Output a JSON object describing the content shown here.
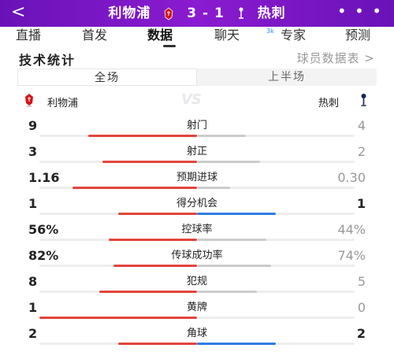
{
  "header": {
    "back": "<",
    "home_team": "利物浦",
    "score": "3 - 1",
    "away_team": "热刺",
    "more": "• • •",
    "colors": {
      "bg": "#7a16c4"
    }
  },
  "tabs": [
    {
      "label": "直播"
    },
    {
      "label": "首发"
    },
    {
      "label": "数据",
      "active": true
    },
    {
      "label": "聊天",
      "badge": "3k"
    },
    {
      "label": "专家"
    },
    {
      "label": "预测"
    }
  ],
  "section": {
    "title": "技术统计",
    "player_link": "球员数据表 >"
  },
  "segment": {
    "full": "全场",
    "half": "上半场"
  },
  "teams": {
    "home": "利物浦",
    "away": "热刺",
    "vs": "VS"
  },
  "stats": [
    {
      "label": "射门",
      "home": "9",
      "away": "4",
      "home_share": 0.69,
      "away_share": 0.31
    },
    {
      "label": "射正",
      "home": "3",
      "away": "2",
      "home_share": 0.6,
      "away_share": 0.4
    },
    {
      "label": "预期进球",
      "home": "1.16",
      "away": "0.30",
      "home_share": 0.79,
      "away_share": 0.21
    },
    {
      "label": "得分机会",
      "home": "1",
      "away": "1",
      "home_share": 0.5,
      "away_share": 0.5,
      "away_highlight": true
    },
    {
      "label": "控球率",
      "home": "56%",
      "away": "44%",
      "home_share": 0.56,
      "away_share": 0.44
    },
    {
      "label": "传球成功率",
      "home": "82%",
      "away": "74%",
      "home_share": 0.53,
      "away_share": 0.47
    },
    {
      "label": "犯规",
      "home": "8",
      "away": "5",
      "home_share": 0.62,
      "away_share": 0.38
    },
    {
      "label": "黄牌",
      "home": "1",
      "away": "0",
      "home_share": 1.0,
      "away_share": 0.0
    },
    {
      "label": "角球",
      "home": "2",
      "away": "2",
      "home_share": 0.5,
      "away_share": 0.5,
      "away_highlight": true
    }
  ]
}
